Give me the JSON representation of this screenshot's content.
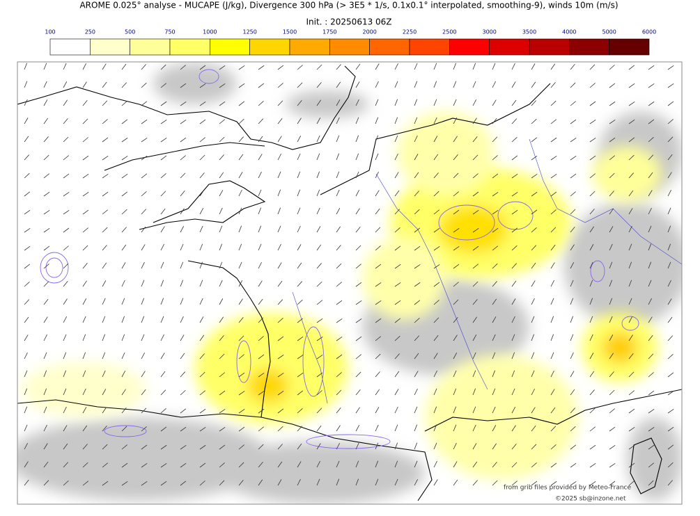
{
  "header": {
    "title": "AROME 0.025° analyse - MUCAPE (J/kg), Divergence 300 hPa (> 3E5 * 1/s, 0.1x0.1° interpolated, smoothing-9), winds 10m (m/s)",
    "init": "Init. : 20250613 06Z"
  },
  "colorbar": {
    "labels": [
      "100",
      "250",
      "500",
      "750",
      "1000",
      "1250",
      "1500",
      "1750",
      "2000",
      "2250",
      "2500",
      "3000",
      "3500",
      "4000",
      "5000",
      "6000"
    ],
    "colors": [
      "#ffffff",
      "#ffffcc",
      "#ffff99",
      "#ffff66",
      "#ffff00",
      "#ffd700",
      "#ffaa00",
      "#ff8c00",
      "#ff6600",
      "#ff4400",
      "#ff0000",
      "#dd0000",
      "#bb0000",
      "#8b0000",
      "#660000"
    ]
  },
  "credits": [
    "from grib files provided by Meteo-France",
    "©2025 sb@inzone.net"
  ]
}
